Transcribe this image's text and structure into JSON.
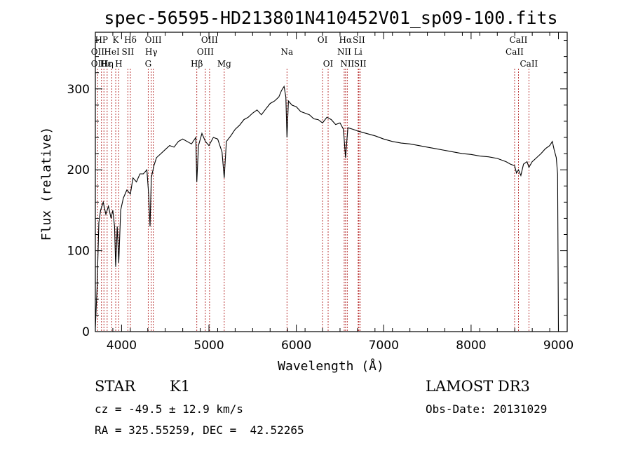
{
  "chart_data": {
    "type": "line",
    "title": "spec-56595-HD213801N410452V01_sp09-100.fits",
    "xlabel": "Wavelength (Å)",
    "ylabel": "Flux (relative)",
    "xlim": [
      3700,
      9100
    ],
    "ylim": [
      0,
      370
    ],
    "xticks": [
      4000,
      5000,
      6000,
      7000,
      8000,
      9000
    ],
    "yticks": [
      0,
      100,
      200,
      300
    ],
    "grid": false,
    "series": [
      {
        "x": [
          3700,
          3720,
          3740,
          3760,
          3790,
          3820,
          3850,
          3880,
          3900,
          3920,
          3933,
          3950,
          3968,
          3990,
          4020,
          4060,
          4101,
          4130,
          4170,
          4210,
          4250,
          4290,
          4310,
          4326,
          4340,
          4370,
          4400,
          4450,
          4500,
          4550,
          4600,
          4650,
          4700,
          4750,
          4800,
          4850,
          4861,
          4880,
          4920,
          4960,
          5000,
          5050,
          5100,
          5150,
          5175,
          5200,
          5250,
          5300,
          5350,
          5400,
          5450,
          5500,
          5550,
          5600,
          5650,
          5700,
          5750,
          5800,
          5830,
          5860,
          5880,
          5893,
          5910,
          5950,
          6000,
          6050,
          6100,
          6150,
          6200,
          6250,
          6300,
          6350,
          6400,
          6450,
          6500,
          6540,
          6563,
          6590,
          6650,
          6700,
          6800,
          6900,
          7000,
          7100,
          7200,
          7300,
          7400,
          7500,
          7600,
          7700,
          7800,
          7900,
          8000,
          8100,
          8200,
          8300,
          8400,
          8450,
          8498,
          8520,
          8542,
          8570,
          8600,
          8640,
          8662,
          8700,
          8750,
          8800,
          8850,
          8900,
          8930,
          8950,
          8975,
          8990,
          9000
        ],
        "y": [
          5,
          55,
          135,
          150,
          160,
          145,
          155,
          140,
          150,
          130,
          80,
          130,
          85,
          150,
          165,
          175,
          170,
          190,
          185,
          195,
          195,
          200,
          170,
          130,
          190,
          205,
          215,
          220,
          225,
          230,
          228,
          235,
          238,
          235,
          232,
          240,
          185,
          230,
          245,
          235,
          230,
          240,
          238,
          222,
          190,
          235,
          242,
          250,
          255,
          262,
          265,
          270,
          274,
          268,
          275,
          282,
          285,
          290,
          298,
          303,
          290,
          240,
          285,
          280,
          278,
          272,
          270,
          268,
          263,
          262,
          258,
          265,
          262,
          256,
          258,
          250,
          215,
          252,
          250,
          248,
          245,
          242,
          238,
          235,
          233,
          232,
          230,
          228,
          226,
          224,
          222,
          220,
          219,
          217,
          216,
          214,
          210,
          207,
          205,
          196,
          200,
          193,
          207,
          210,
          203,
          210,
          215,
          220,
          226,
          230,
          235,
          225,
          215,
          195,
          0
        ]
      }
    ],
    "line_labels": [
      {
        "label": "HP",
        "x": 3770,
        "row": 1
      },
      {
        "label": "K",
        "x": 3933,
        "row": 1
      },
      {
        "label": "Hδ",
        "x": 4101,
        "row": 1
      },
      {
        "label": "OIII",
        "x": 4363,
        "row": 1
      },
      {
        "label": "OIII",
        "x": 5007,
        "row": 1
      },
      {
        "label": "OI",
        "x": 6300,
        "row": 1
      },
      {
        "label": "Hα",
        "x": 6563,
        "row": 1
      },
      {
        "label": "SII",
        "x": 6716,
        "row": 1
      },
      {
        "label": "CaII",
        "x": 8542,
        "row": 1
      },
      {
        "label": "OII",
        "x": 3727,
        "row": 2
      },
      {
        "label": "HeI",
        "x": 3889,
        "row": 2
      },
      {
        "label": "SII",
        "x": 4072,
        "row": 2
      },
      {
        "label": "Hγ",
        "x": 4340,
        "row": 2
      },
      {
        "label": "OIII",
        "x": 4959,
        "row": 2
      },
      {
        "label": "Na",
        "x": 5893,
        "row": 2
      },
      {
        "label": "NII",
        "x": 6548,
        "row": 2
      },
      {
        "label": "Li",
        "x": 6708,
        "row": 2
      },
      {
        "label": "CaII",
        "x": 8498,
        "row": 2
      },
      {
        "label": "OII",
        "x": 3727,
        "row": 3
      },
      {
        "label": "Hε",
        "x": 3820,
        "row": 3
      },
      {
        "label": "Hη",
        "x": 3836,
        "row": 3
      },
      {
        "label": "H",
        "x": 3968,
        "row": 3
      },
      {
        "label": "G",
        "x": 4305,
        "row": 3
      },
      {
        "label": "Hβ",
        "x": 4861,
        "row": 3
      },
      {
        "label": "Mg",
        "x": 5175,
        "row": 3
      },
      {
        "label": "OI",
        "x": 6364,
        "row": 3
      },
      {
        "label": "NII",
        "x": 6583,
        "row": 3
      },
      {
        "label": "SII",
        "x": 6731,
        "row": 3
      },
      {
        "label": "CaII",
        "x": 8662,
        "row": 3
      }
    ],
    "line_markers": [
      3727,
      3770,
      3798,
      3835,
      3889,
      3933,
      3968,
      4072,
      4101,
      4305,
      4340,
      4363,
      4861,
      4959,
      5007,
      5175,
      5893,
      6300,
      6364,
      6548,
      6563,
      6583,
      6708,
      6716,
      6731,
      8498,
      8542,
      8662
    ]
  },
  "info": {
    "object_class": "STAR",
    "subclass": "K1",
    "survey": "LAMOST DR3",
    "cz": "cz = -49.5 ± 12.9 km/s",
    "obs_date": "Obs-Date: 20131029",
    "coords": "RA = 325.55259, DEC =  42.52265"
  }
}
